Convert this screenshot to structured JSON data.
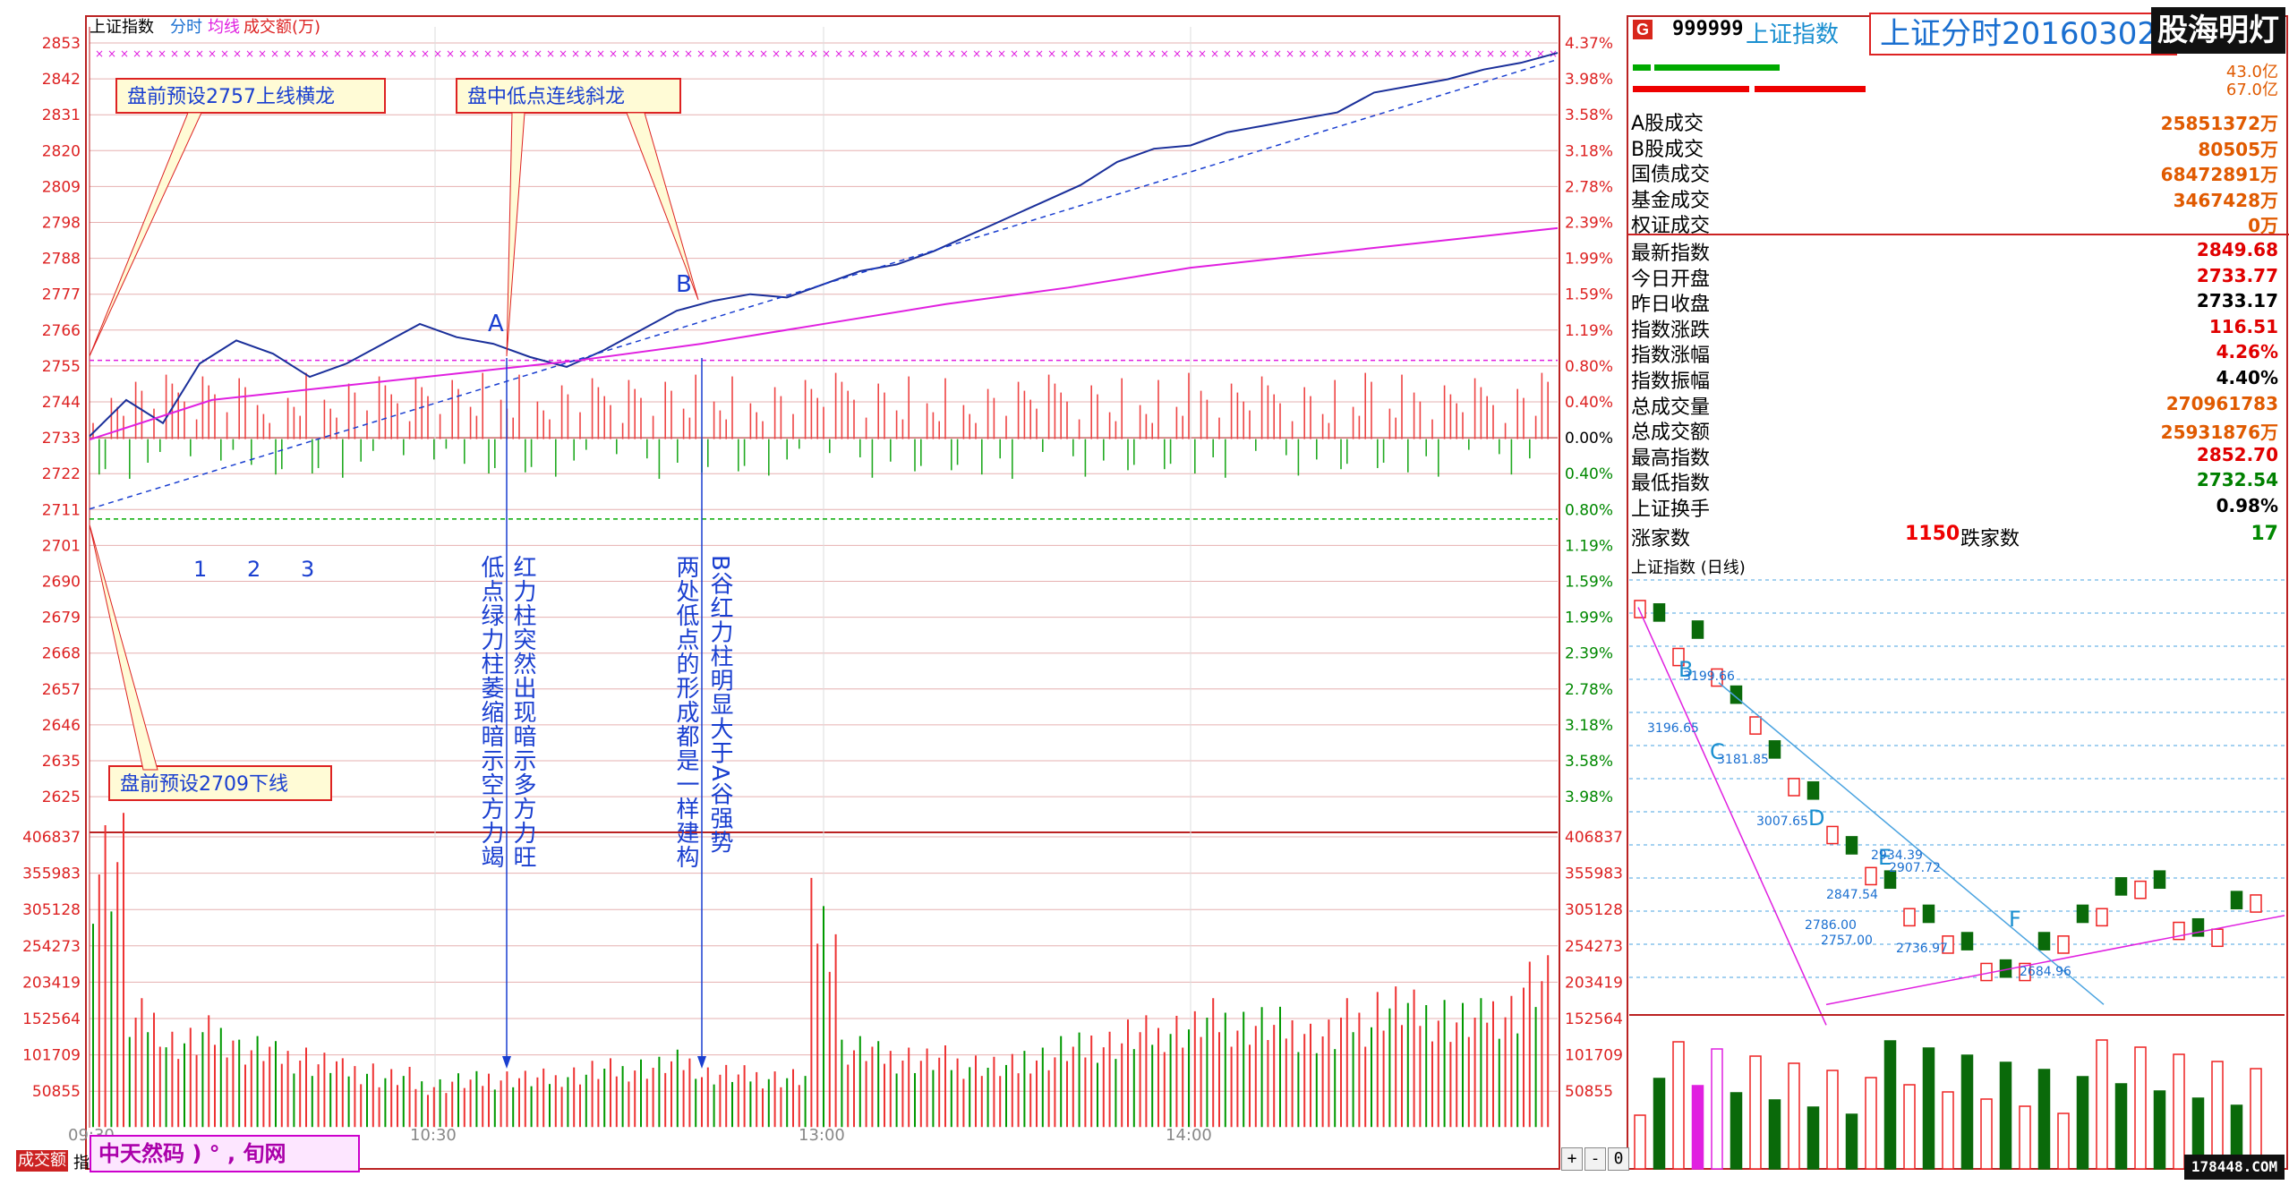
{
  "chart_data": {
    "type": "line",
    "title": "上证指数",
    "header_labels": [
      "上证指数",
      "分时",
      "均线",
      "成交额(万)"
    ],
    "price_axis_left": [
      "2853",
      "2842",
      "2831",
      "2820",
      "2809",
      "2798",
      "2788",
      "2777",
      "2766",
      "2755",
      "2744",
      "2733",
      "2722",
      "2711",
      "2701",
      "2690",
      "2679",
      "2668",
      "2657",
      "2646",
      "2635",
      "2625"
    ],
    "pct_axis_right": [
      "4.37%",
      "3.98%",
      "3.58%",
      "3.18%",
      "2.78%",
      "2.39%",
      "1.99%",
      "1.59%",
      "1.19%",
      "0.80%",
      "0.40%",
      "0.00%",
      "0.40%",
      "0.80%",
      "1.19%",
      "1.59%",
      "1.99%",
      "2.39%",
      "2.78%",
      "3.18%",
      "3.58%",
      "3.98%"
    ],
    "volume_axis": [
      "406837",
      "355983",
      "305128",
      "254273",
      "203419",
      "152564",
      "101709",
      "50855"
    ],
    "time_ticks": [
      "09:30",
      "10:30",
      "13:00",
      "14:00"
    ],
    "ylim": [
      2625,
      2853
    ],
    "prev_close": 2733.17,
    "series": [
      {
        "name": "分时",
        "color": "#1a2f9a",
        "x": [
          0,
          6,
          12,
          18,
          24,
          30,
          36,
          42,
          48,
          54,
          60,
          66,
          72,
          78,
          84,
          90,
          96,
          102,
          108,
          114,
          120,
          126,
          132,
          138,
          144,
          150,
          156,
          162,
          168,
          174,
          180,
          186,
          192,
          198,
          204,
          210,
          216,
          222,
          228,
          234,
          240
        ],
        "values": [
          2734,
          2745,
          2738,
          2756,
          2763,
          2759,
          2752,
          2756,
          2762,
          2768,
          2764,
          2762,
          2758,
          2755,
          2760,
          2766,
          2772,
          2775,
          2777,
          2776,
          2780,
          2784,
          2786,
          2790,
          2795,
          2800,
          2805,
          2810,
          2817,
          2821,
          2822,
          2826,
          2828,
          2830,
          2832,
          2838,
          2840,
          2842,
          2845,
          2847,
          2850
        ]
      },
      {
        "name": "均线",
        "color": "#e020e0",
        "x": [
          0,
          20,
          40,
          60,
          80,
          100,
          120,
          140,
          160,
          180,
          200,
          220,
          240
        ],
        "values": [
          2733,
          2745,
          2749,
          2753,
          2757,
          2762,
          2768,
          2774,
          2779,
          2785,
          2789,
          2793,
          2797
        ]
      }
    ],
    "volume": [
      380000,
      150000,
      120000,
      130000,
      110000,
      100000,
      90000,
      80000,
      70000,
      60000,
      65000,
      70000,
      68000,
      75000,
      80000,
      85000,
      90000,
      75000,
      72000,
      70000,
      290000,
      110000,
      100000,
      95000,
      90000,
      85000,
      100000,
      110000,
      120000,
      130000,
      140000,
      150000,
      145000,
      140000,
      130000,
      150000,
      170000,
      160000,
      150000,
      165000,
      200000
    ],
    "guide_lines": {
      "upper_2757": 2757,
      "lower_2709": 2709
    },
    "annotations": {
      "box1": "盘前预设2757上线横龙",
      "box2": "盘中低点连线斜龙",
      "box3": "盘前预设2709下线",
      "point_a": "A",
      "point_b": "B",
      "num1": "1",
      "num2": "2",
      "num3": "3",
      "col1": "低点绿力柱萎缩暗示空方力竭",
      "col2": "红力柱突然出现暗示多方力旺",
      "col3": "两处低点的形成都是一样建构",
      "col4": "B谷红力柱明显大于A谷强势"
    },
    "xlabel": "",
    "ylabel": ""
  },
  "side": {
    "code": "999999",
    "name": "上证指数",
    "title_box": "上证分时20160302",
    "brand": "股海明灯",
    "badge": "G",
    "amount1": "43.0亿",
    "amount2": "67.0亿",
    "rows": [
      {
        "k": "A股成交",
        "v": "25851372万",
        "c": "#e05a00"
      },
      {
        "k": "B股成交",
        "v": "80505万",
        "c": "#e05a00"
      },
      {
        "k": "国债成交",
        "v": "68472891万",
        "c": "#e05a00"
      },
      {
        "k": "基金成交",
        "v": "3467428万",
        "c": "#e05a00"
      },
      {
        "k": "权证成交",
        "v": "0万",
        "c": "#e05a00"
      },
      {
        "k": "最新指数",
        "v": "2849.68",
        "c": "#e00000"
      },
      {
        "k": "今日开盘",
        "v": "2733.77",
        "c": "#e00000"
      },
      {
        "k": "昨日收盘",
        "v": "2733.17",
        "c": "#000000"
      },
      {
        "k": "指数涨跌",
        "v": "116.51",
        "c": "#e00000"
      },
      {
        "k": "指数涨幅",
        "v": "4.26%",
        "c": "#e00000"
      },
      {
        "k": "指数振幅",
        "v": "4.40%",
        "c": "#000000"
      },
      {
        "k": "总成交量",
        "v": "270961783",
        "c": "#e05a00"
      },
      {
        "k": "总成交额",
        "v": "25931876万",
        "c": "#e05a00"
      },
      {
        "k": "最高指数",
        "v": "2852.70",
        "c": "#e00000"
      },
      {
        "k": "最低指数",
        "v": "2732.54",
        "c": "#008000"
      },
      {
        "k": "上证换手",
        "v": "0.98%",
        "c": "#000000"
      }
    ],
    "adv_label": "涨家数",
    "adv_val": "1150",
    "dec_label": "跌家数",
    "dec_val": "17",
    "kline_title": "上证指数 (日线)",
    "kline_labels": {
      "b": "B",
      "c": "C",
      "d": "D",
      "e": "E",
      "f": "F",
      "v1": "3199.66",
      "v2": "3196.65",
      "v3": "3181.85",
      "v4": "3007.65",
      "v5": "2934.39",
      "v6": "2907.72",
      "v7": "2847.54",
      "v8": "2786.00",
      "v9": "2757.00",
      "v10": "2736.97",
      "v11": "2684.96"
    }
  },
  "footer": {
    "tab1": "成交额",
    "tab2": "指",
    "watermark": "中天然码 ) ° , 旬网",
    "site": "178448.COM",
    "plus": "+",
    "minus": "-",
    "zero": "0"
  }
}
